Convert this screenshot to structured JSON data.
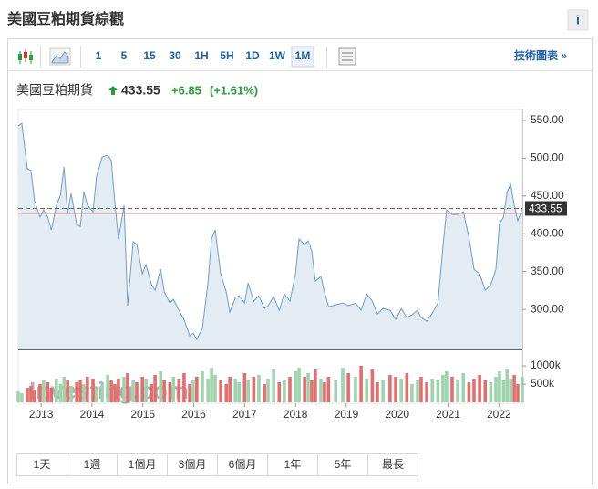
{
  "header": {
    "title": "美國豆粕期貨綜觀",
    "info": "i"
  },
  "toolbar": {
    "intervals": [
      "1",
      "5",
      "15",
      "30",
      "1H",
      "5H",
      "1D",
      "1W",
      "1M"
    ],
    "selected": 8,
    "tech_chart": "技術圖表 »"
  },
  "quote": {
    "name": "美國豆粕期貨",
    "price": 433.55,
    "change": "+6.85",
    "change_pct": "(+1.61%)"
  },
  "ranges": [
    "1天",
    "1週",
    "1個月",
    "3個月",
    "6個月",
    "1年",
    "5年",
    "最長"
  ],
  "chart_data": {
    "type": "line",
    "watermark": "Investing.com",
    "x": [
      2012.55,
      2012.62,
      2012.73,
      2012.8,
      2012.87,
      2012.98,
      2013.05,
      2013.13,
      2013.2,
      2013.3,
      2013.38,
      2013.45,
      2013.52,
      2013.59,
      2013.7,
      2013.77,
      2013.84,
      2013.91,
      2014.02,
      2014.09,
      2014.2,
      2014.31,
      2014.38,
      2014.45,
      2014.52,
      2014.63,
      2014.7,
      2014.81,
      2014.88,
      2014.99,
      2015.06,
      2015.17,
      2015.24,
      2015.35,
      2015.42,
      2015.53,
      2015.6,
      2015.71,
      2015.81,
      2015.92,
      2015.99,
      2016.06,
      2016.17,
      2016.28,
      2016.35,
      2016.42,
      2016.53,
      2016.64,
      2016.71,
      2016.82,
      2016.89,
      2017.0,
      2017.07,
      2017.18,
      2017.28,
      2017.39,
      2017.46,
      2017.57,
      2017.68,
      2017.78,
      2017.89,
      2018.0,
      2018.07,
      2018.18,
      2018.25,
      2018.32,
      2018.39,
      2018.5,
      2018.57,
      2018.65,
      2018.79,
      2018.93,
      2019.04,
      2019.18,
      2019.29,
      2019.4,
      2019.51,
      2019.61,
      2019.72,
      2019.86,
      2019.97,
      2020.08,
      2020.19,
      2020.29,
      2020.4,
      2020.47,
      2020.58,
      2020.69,
      2020.8,
      2020.9,
      2020.97,
      2021.08,
      2021.19,
      2021.3,
      2021.41,
      2021.51,
      2021.62,
      2021.73,
      2021.84,
      2021.94,
      2022.01,
      2022.09,
      2022.16,
      2022.23,
      2022.3,
      2022.37,
      2022.46
    ],
    "series": [
      {
        "name": "美國豆粕期貨",
        "color": "#6f9dc8",
        "fill": "#e3ebf3",
        "values": [
          542.8,
          546.4,
          486.0,
          483.6,
          443.7,
          422.0,
          431.7,
          422.0,
          405.1,
          437.7,
          451.0,
          488.4,
          426.8,
          453.4,
          412.3,
          409.9,
          455.8,
          437.7,
          429.2,
          476.3,
          501.7,
          504.1,
          496.9,
          441.3,
          393.0,
          437.7,
          304.8,
          389.4,
          385.8,
          347.1,
          359.2,
          332.6,
          325.4,
          353.1,
          323.0,
          308.5,
          313.3,
          298.8,
          286.7,
          265.0,
          268.6,
          260.2,
          274.6,
          335.0,
          393.0,
          405.1,
          347.1,
          323.0,
          296.4,
          315.7,
          318.1,
          308.5,
          335.0,
          310.9,
          318.1,
          301.2,
          304.8,
          316.9,
          298.8,
          320.5,
          310.9,
          347.1,
          393.0,
          385.8,
          390.6,
          377.3,
          337.4,
          343.5,
          323.0,
          303.6,
          306.0,
          308.5,
          304.8,
          308.5,
          298.8,
          320.5,
          310.9,
          293.9,
          301.2,
          298.8,
          286.7,
          301.2,
          289.1,
          292.8,
          298.8,
          289.1,
          284.3,
          295.2,
          308.5,
          383.3,
          431.7,
          425.6,
          425.6,
          429.2,
          395.4,
          353.1,
          347.1,
          325.4,
          332.6,
          353.1,
          413.5,
          422.0,
          455.8,
          465.5,
          437.7,
          417.2,
          433.55
        ]
      }
    ],
    "volume": {
      "up_color": "#9fd3ad",
      "down_color": "#e07070",
      "values": [
        300000,
        250000,
        400000,
        450000,
        350000,
        500000,
        600000,
        550000,
        400000,
        650000,
        500000,
        700000,
        600000,
        450000,
        550000,
        600000,
        500000,
        700000,
        650000,
        400000,
        550000,
        750000,
        600000,
        500000,
        650000,
        700000,
        800000,
        600000,
        550000,
        700000,
        650000,
        500000,
        750000,
        850000,
        600000,
        550000,
        700000,
        650000,
        800000,
        500000,
        600000,
        700000,
        850000,
        650000,
        950000,
        750000,
        600000,
        500000,
        700000,
        650000,
        550000,
        800000,
        600000,
        700000,
        750000,
        500000,
        650000,
        900000,
        550000,
        600000,
        700000,
        850000,
        950000,
        700000,
        800000,
        600000,
        900000,
        650000,
        550000,
        700000,
        600000,
        950000,
        800000,
        700000,
        1000000,
        650000,
        900000,
        550000,
        600000,
        750000,
        700000,
        650000,
        800000,
        500000,
        600000,
        700000,
        550000,
        650000,
        600000,
        750000,
        850000,
        700000,
        600000,
        800000,
        550000,
        650000,
        750000,
        600000,
        550000,
        700000,
        850000,
        600000,
        900000,
        650000,
        750000,
        500000,
        700000
      ],
      "ylim": [
        0,
        1450000
      ],
      "yticks": [
        {
          "value": 1000000,
          "label": "1000k"
        },
        {
          "value": 500000,
          "label": "500k"
        }
      ]
    },
    "reference_line": 426.7,
    "reference_color": "#e8a0a0",
    "xlim": [
      2012.55,
      2022.46
    ],
    "xticks": [
      2013,
      2014,
      2015,
      2016,
      2017,
      2018,
      2019,
      2020,
      2021,
      2022
    ],
    "ylim": [
      247,
      564.5
    ],
    "yticks": [
      {
        "value": 550,
        "label": "550.00"
      },
      {
        "value": 500,
        "label": "500.00"
      },
      {
        "value": 450,
        "label": "450.00"
      },
      {
        "value": 400,
        "label": "400.00"
      },
      {
        "value": 350,
        "label": "350.00"
      },
      {
        "value": 300,
        "label": "300.00"
      }
    ]
  }
}
